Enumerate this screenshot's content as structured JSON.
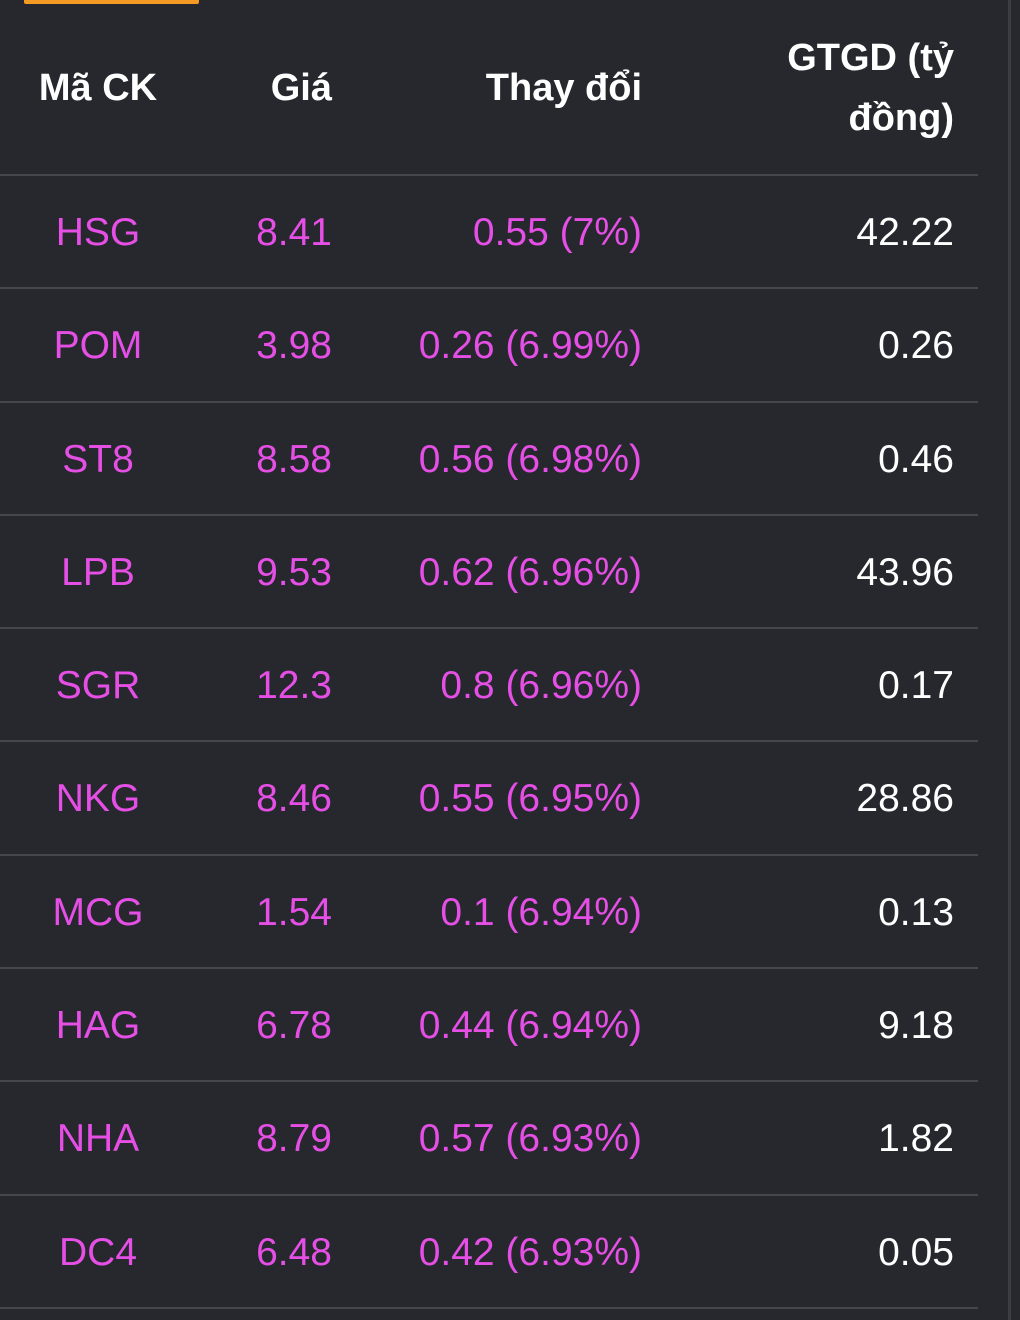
{
  "header": {
    "code": "Mã CK",
    "price": "Giá",
    "change": "Thay đổi",
    "value_line1": "GTGD (tỷ",
    "value_line2": "đồng)"
  },
  "colors": {
    "ceiling": "#e64fe6",
    "value": "#ffffff",
    "accent": "#f59a23"
  },
  "rows": [
    {
      "code": "HSG",
      "price": "8.41",
      "change": "0.55 (7%)",
      "value": "42.22"
    },
    {
      "code": "POM",
      "price": "3.98",
      "change": "0.26 (6.99%)",
      "value": "0.26"
    },
    {
      "code": "ST8",
      "price": "8.58",
      "change": "0.56 (6.98%)",
      "value": "0.46"
    },
    {
      "code": "LPB",
      "price": "9.53",
      "change": "0.62 (6.96%)",
      "value": "43.96"
    },
    {
      "code": "SGR",
      "price": "12.3",
      "change": "0.8 (6.96%)",
      "value": "0.17"
    },
    {
      "code": "NKG",
      "price": "8.46",
      "change": "0.55 (6.95%)",
      "value": "28.86"
    },
    {
      "code": "MCG",
      "price": "1.54",
      "change": "0.1 (6.94%)",
      "value": "0.13"
    },
    {
      "code": "HAG",
      "price": "6.78",
      "change": "0.44 (6.94%)",
      "value": "9.18"
    },
    {
      "code": "NHA",
      "price": "8.79",
      "change": "0.57 (6.93%)",
      "value": "1.82"
    },
    {
      "code": "DC4",
      "price": "6.48",
      "change": "0.42 (6.93%)",
      "value": "0.05"
    }
  ]
}
